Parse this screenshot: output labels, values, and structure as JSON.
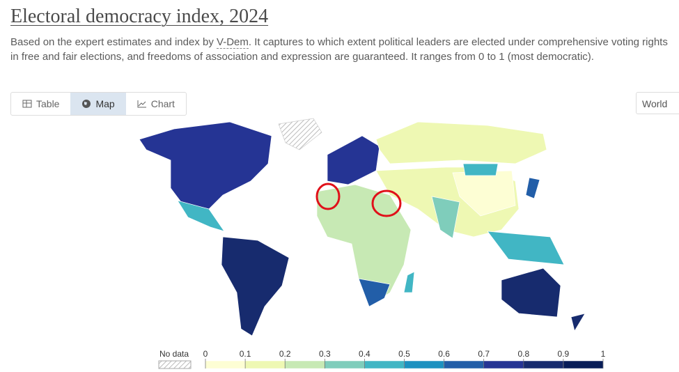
{
  "header": {
    "title": "Electoral democracy index, 2024",
    "subtitle_before": "Based on the expert estimates and index by ",
    "subtitle_link": "V-Dem",
    "subtitle_after": ". It captures to which extent political leaders are elected under comprehensive voting rights in free and fair elections, and freedoms of association and expression are guaranteed. It ranges from 0 to 1 (most democratic)."
  },
  "tabs": [
    "Table",
    "Map",
    "Chart"
  ],
  "region": "World",
  "legend": {
    "no_data": "No data",
    "bins": [
      0,
      0.1,
      0.2,
      0.3,
      0.4,
      0.5,
      0.6,
      0.7,
      0.8,
      0.9,
      1
    ],
    "colors": [
      "#fdfed4",
      "#eef8b3",
      "#c7e9b4",
      "#7fcdbb",
      "#41b6c4",
      "#1d91c0",
      "#225ea8",
      "#253494",
      "#172b6e",
      "#081d58"
    ]
  }
}
